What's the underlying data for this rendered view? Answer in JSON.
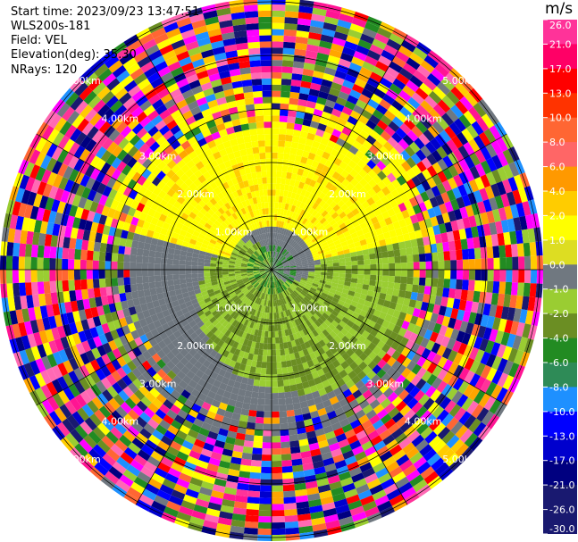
{
  "header": {
    "start_time": "Start time: 2023/09/23 13:47:51",
    "instrument": "WLS200s-181",
    "field": "Field: VEL",
    "elevation": "Elevation(deg): 35.30",
    "nrays": "NRays: 120"
  },
  "chart_data": {
    "type": "heatmap",
    "projection": "polar PPI",
    "field": "VEL",
    "units": "m/s",
    "n_rays": 120,
    "range_rings_km": [
      1,
      2,
      3,
      4,
      5
    ],
    "ring_labels": [
      "1.00km",
      "2.00km",
      "3.00km",
      "4.00km",
      "5.00km"
    ],
    "spoke_azimuths_deg": [
      0,
      30,
      60,
      90,
      120,
      150,
      180,
      210,
      240,
      270,
      300,
      330
    ],
    "colorbar": {
      "ticks": [
        "26.0",
        "21.0",
        "17.0",
        "13.0",
        "10.0",
        "8.0",
        "6.0",
        "4.0",
        "2.0",
        "1.0",
        "0.0",
        "-1.0",
        "-2.0",
        "-4.0",
        "-6.0",
        "-8.0",
        "-10.0",
        "-13.0",
        "-17.0",
        "-21.0",
        "-26.0",
        "-30.0"
      ],
      "colors": [
        "#ff3399",
        "#ff0066",
        "#ff0000",
        "#ff3300",
        "#ff6633",
        "#ff6666",
        "#ff9900",
        "#ffcc00",
        "#ffff00",
        "#dddd22",
        "#707880",
        "#9acd32",
        "#6b8e23",
        "#228b22",
        "#2e8b57",
        "#1e90ff",
        "#0000ff",
        "#0000cd",
        "#000080",
        "#191970",
        "#191970"
      ]
    }
  }
}
